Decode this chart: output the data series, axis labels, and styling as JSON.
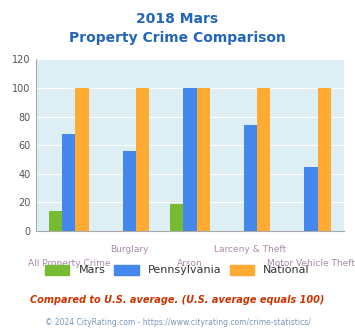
{
  "title_line1": "2018 Mars",
  "title_line2": "Property Crime Comparison",
  "categories": [
    "All Property Crime",
    "Burglary",
    "Arson",
    "Larceny & Theft",
    "Motor Vehicle Theft"
  ],
  "mars_values": [
    14,
    0,
    19,
    0,
    0
  ],
  "pennsylvania_values": [
    68,
    56,
    100,
    74,
    45
  ],
  "national_values": [
    100,
    100,
    100,
    100,
    100
  ],
  "mars_color": "#77bb33",
  "pennsylvania_color": "#4488ee",
  "national_color": "#ffaa33",
  "bg_color": "#ddeef5",
  "ylim": [
    0,
    120
  ],
  "yticks": [
    0,
    20,
    40,
    60,
    80,
    100,
    120
  ],
  "legend_labels": [
    "Mars",
    "Pennsylvania",
    "National"
  ],
  "footnote1": "Compared to U.S. average. (U.S. average equals 100)",
  "footnote2": "© 2024 CityRating.com - https://www.cityrating.com/crime-statistics/",
  "title_color": "#2266bb",
  "xticklabel_color": "#aa88aa",
  "footnote1_color": "#cc3300",
  "footnote2_color": "#7799bb",
  "bar_width": 0.22,
  "row1_labels": [
    "Burglary",
    "Larceny & Theft"
  ],
  "row1_indices": [
    1,
    3
  ],
  "row2_labels": [
    "All Property Crime",
    "Arson",
    "Motor Vehicle Theft"
  ],
  "row2_indices": [
    0,
    2,
    4
  ]
}
